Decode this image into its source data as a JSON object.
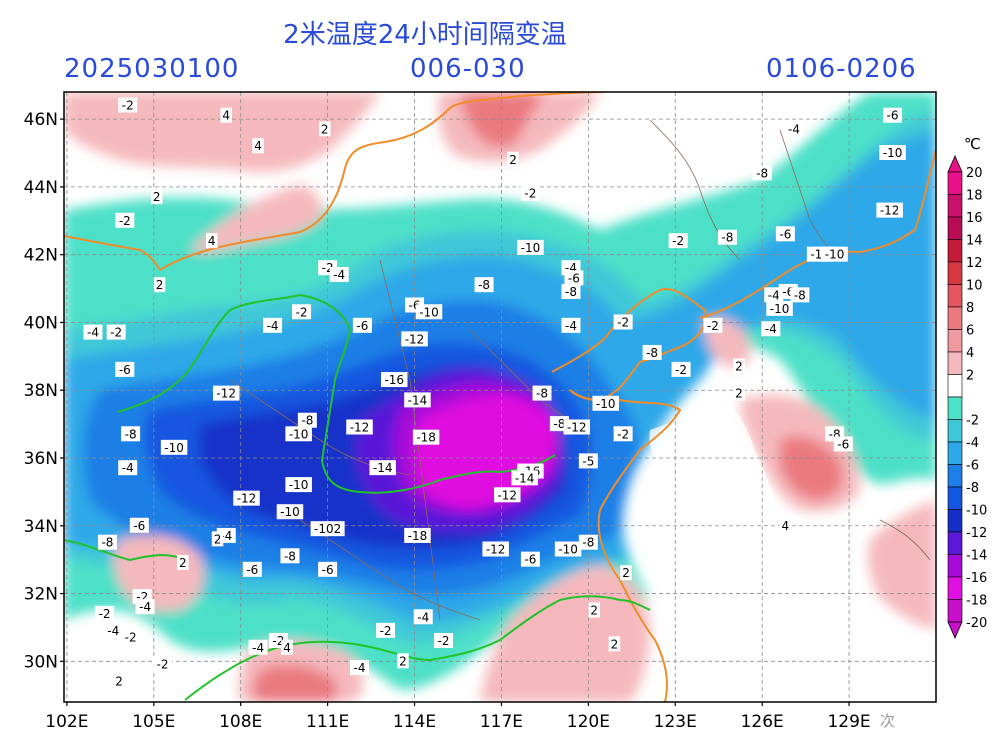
{
  "header": {
    "title": "2米温度24小时间隔变温",
    "run_time": "2025030100",
    "forecast_hours": "006-030",
    "valid_period": "0106-0206"
  },
  "axes": {
    "lat_labels": [
      "46N",
      "44N",
      "42N",
      "40N",
      "38N",
      "36N",
      "34N",
      "32N",
      "30N"
    ],
    "lon_labels": [
      "102E",
      "105E",
      "108E",
      "111E",
      "114E",
      "117E",
      "120E",
      "123E",
      "126E",
      "129E"
    ],
    "lat_values": [
      46,
      44,
      42,
      40,
      38,
      36,
      34,
      32,
      30
    ],
    "lon_values": [
      102,
      105,
      108,
      111,
      114,
      117,
      120,
      123,
      126,
      129
    ],
    "lon_range": [
      101.9,
      132
    ],
    "lat_range": [
      28.8,
      46.8
    ]
  },
  "colorbar": {
    "unit": "℃",
    "levels": [
      20,
      18,
      16,
      14,
      12,
      10,
      8,
      6,
      4,
      2,
      -2,
      -4,
      -6,
      -8,
      -10,
      -12,
      -14,
      -16,
      -18,
      -20
    ],
    "colors": [
      "#e8118a",
      "#c8116a",
      "#b80d55",
      "#c41a3a",
      "#d8383f",
      "#e35560",
      "#ea7a80",
      "#f09aa0",
      "#f5b9bd",
      "#ffffff",
      "#4ee0c8",
      "#3fc8d8",
      "#2ea8e8",
      "#1e7fe6",
      "#1356e0",
      "#1530c8",
      "#5a18d8",
      "#a60ad8",
      "#e010e0",
      "#c810c8"
    ]
  },
  "contour_labels": [
    {
      "text": "-2",
      "lon": 104.1,
      "lat": 46.4
    },
    {
      "text": "4",
      "lon": 107.5,
      "lat": 46.1
    },
    {
      "text": "4",
      "lon": 108.6,
      "lat": 45.2
    },
    {
      "text": "2",
      "lon": 110.9,
      "lat": 45.7
    },
    {
      "text": "2",
      "lon": 117.4,
      "lat": 44.8
    },
    {
      "text": "2",
      "lon": 105.1,
      "lat": 43.7
    },
    {
      "text": "-2",
      "lon": 104.0,
      "lat": 43.0
    },
    {
      "text": "4",
      "lon": 107.0,
      "lat": 42.4
    },
    {
      "text": "2",
      "lon": 105.2,
      "lat": 41.1
    },
    {
      "text": "-2",
      "lon": 118.0,
      "lat": 43.8
    },
    {
      "text": "-2",
      "lon": 111.0,
      "lat": 41.6
    },
    {
      "text": "-4",
      "lon": 111.4,
      "lat": 41.4
    },
    {
      "text": "-10",
      "lon": 118.0,
      "lat": 42.2
    },
    {
      "text": "-4",
      "lon": 119.4,
      "lat": 41.6
    },
    {
      "text": "-6",
      "lon": 119.5,
      "lat": 41.3
    },
    {
      "text": "-8",
      "lon": 119.4,
      "lat": 40.9
    },
    {
      "text": "-8",
      "lon": 116.4,
      "lat": 41.1
    },
    {
      "text": "-6",
      "lon": 114.0,
      "lat": 40.5
    },
    {
      "text": "-10",
      "lon": 114.5,
      "lat": 40.3
    },
    {
      "text": "-2",
      "lon": 110.1,
      "lat": 40.3
    },
    {
      "text": "-4",
      "lon": 109.1,
      "lat": 39.9
    },
    {
      "text": "-6",
      "lon": 112.2,
      "lat": 39.9
    },
    {
      "text": "-4",
      "lon": 119.4,
      "lat": 39.9
    },
    {
      "text": "-2",
      "lon": 121.2,
      "lat": 40.0
    },
    {
      "text": "-8",
      "lon": 122.2,
      "lat": 39.1
    },
    {
      "text": "-4",
      "lon": 102.9,
      "lat": 39.7
    },
    {
      "text": "-2",
      "lon": 103.7,
      "lat": 39.7
    },
    {
      "text": "-12",
      "lon": 114.0,
      "lat": 39.5
    },
    {
      "text": "-6",
      "lon": 104.0,
      "lat": 38.6
    },
    {
      "text": "-16",
      "lon": 113.3,
      "lat": 38.3
    },
    {
      "text": "-12",
      "lon": 107.5,
      "lat": 37.9
    },
    {
      "text": "-14",
      "lon": 114.1,
      "lat": 37.7
    },
    {
      "text": "-8",
      "lon": 118.4,
      "lat": 37.9
    },
    {
      "text": "-10",
      "lon": 120.6,
      "lat": 37.6
    },
    {
      "text": "-8",
      "lon": 119.0,
      "lat": 37.0
    },
    {
      "text": "-12",
      "lon": 119.6,
      "lat": 36.9
    },
    {
      "text": "-8",
      "lon": 110.3,
      "lat": 37.1
    },
    {
      "text": "-10",
      "lon": 110.0,
      "lat": 36.7
    },
    {
      "text": "-12",
      "lon": 112.1,
      "lat": 36.9
    },
    {
      "text": "-18",
      "lon": 114.4,
      "lat": 36.6
    },
    {
      "text": "-8",
      "lon": 104.2,
      "lat": 36.7
    },
    {
      "text": "-10",
      "lon": 105.7,
      "lat": 36.3
    },
    {
      "text": "-4",
      "lon": 104.1,
      "lat": 35.7
    },
    {
      "text": "-16",
      "lon": 118.0,
      "lat": 35.6
    },
    {
      "text": "-14",
      "lon": 117.8,
      "lat": 35.4
    },
    {
      "text": "-5",
      "lon": 120.0,
      "lat": 35.9
    },
    {
      "text": "-14",
      "lon": 112.9,
      "lat": 35.7
    },
    {
      "text": "-10",
      "lon": 110.0,
      "lat": 35.2
    },
    {
      "text": "-12",
      "lon": 117.2,
      "lat": 34.9
    },
    {
      "text": "-12",
      "lon": 108.2,
      "lat": 34.8
    },
    {
      "text": "-10",
      "lon": 109.7,
      "lat": 34.4
    },
    {
      "text": "-102",
      "lon": 111.0,
      "lat": 33.9
    },
    {
      "text": "-18",
      "lon": 114.1,
      "lat": 33.7
    },
    {
      "text": "-6",
      "lon": 104.5,
      "lat": 34.0
    },
    {
      "text": "-8",
      "lon": 103.4,
      "lat": 33.5
    },
    {
      "text": "-4",
      "lon": 107.5,
      "lat": 33.7
    },
    {
      "text": "2",
      "lon": 107.2,
      "lat": 33.6
    },
    {
      "text": "-12",
      "lon": 116.8,
      "lat": 33.3
    },
    {
      "text": "-10",
      "lon": 119.3,
      "lat": 33.3
    },
    {
      "text": "-6",
      "lon": 118.0,
      "lat": 33.0
    },
    {
      "text": "-8",
      "lon": 120.0,
      "lat": 33.5
    },
    {
      "text": "-8",
      "lon": 109.7,
      "lat": 33.1
    },
    {
      "text": "2",
      "lon": 106.0,
      "lat": 32.9
    },
    {
      "text": "-6",
      "lon": 108.4,
      "lat": 32.7
    },
    {
      "text": "-6",
      "lon": 111.0,
      "lat": 32.7
    },
    {
      "text": "2",
      "lon": 121.3,
      "lat": 32.6
    },
    {
      "text": "-2",
      "lon": 104.6,
      "lat": 31.9
    },
    {
      "text": "-4",
      "lon": 104.7,
      "lat": 31.6
    },
    {
      "text": "-2",
      "lon": 103.3,
      "lat": 31.4
    },
    {
      "text": "2",
      "lon": 120.2,
      "lat": 31.5
    },
    {
      "text": "-2",
      "lon": 104.2,
      "lat": 30.7
    },
    {
      "text": "-4",
      "lon": 103.6,
      "lat": 30.9
    },
    {
      "text": "-4",
      "lon": 114.3,
      "lat": 31.3
    },
    {
      "text": "-2",
      "lon": 113.0,
      "lat": 30.9
    },
    {
      "text": "-2",
      "lon": 115.0,
      "lat": 30.6
    },
    {
      "text": "2",
      "lon": 120.9,
      "lat": 30.5
    },
    {
      "text": "-4",
      "lon": 108.6,
      "lat": 30.4
    },
    {
      "text": "-2",
      "lon": 109.3,
      "lat": 30.6
    },
    {
      "text": "4",
      "lon": 109.6,
      "lat": 30.4
    },
    {
      "text": "-2",
      "lon": 105.3,
      "lat": 29.9
    },
    {
      "text": "-4",
      "lon": 112.1,
      "lat": 29.8
    },
    {
      "text": "2",
      "lon": 113.6,
      "lat": 30.0
    },
    {
      "text": "2",
      "lon": 103.8,
      "lat": 29.4
    },
    {
      "text": "-2",
      "lon": 123.1,
      "lat": 42.4
    },
    {
      "text": "-8",
      "lon": 124.8,
      "lat": 42.5
    },
    {
      "text": "-6",
      "lon": 126.8,
      "lat": 42.6
    },
    {
      "text": "-10",
      "lon": 128.0,
      "lat": 42.0
    },
    {
      "text": "-8",
      "lon": 126.0,
      "lat": 44.4
    },
    {
      "text": "-4",
      "lon": 127.1,
      "lat": 45.7
    },
    {
      "text": "-6",
      "lon": 130.5,
      "lat": 46.1
    },
    {
      "text": "-10",
      "lon": 130.5,
      "lat": 45.0
    },
    {
      "text": "-12",
      "lon": 130.4,
      "lat": 43.3
    },
    {
      "text": "-10",
      "lon": 128.5,
      "lat": 42.0
    },
    {
      "text": "-4",
      "lon": 126.4,
      "lat": 40.8
    },
    {
      "text": "-6",
      "lon": 126.9,
      "lat": 40.9
    },
    {
      "text": "-8",
      "lon": 127.3,
      "lat": 40.8
    },
    {
      "text": "-10",
      "lon": 126.6,
      "lat": 40.4
    },
    {
      "text": "-4",
      "lon": 126.3,
      "lat": 39.8
    },
    {
      "text": "-2",
      "lon": 124.3,
      "lat": 39.9
    },
    {
      "text": "2",
      "lon": 125.2,
      "lat": 38.7
    },
    {
      "text": "2",
      "lon": 125.2,
      "lat": 37.9
    },
    {
      "text": "-8",
      "lon": 128.5,
      "lat": 36.7
    },
    {
      "text": "-6",
      "lon": 128.8,
      "lat": 36.4
    },
    {
      "text": "4",
      "lon": 126.8,
      "lat": 34.0
    },
    {
      "text": "-2",
      "lon": 123.2,
      "lat": 38.6
    },
    {
      "text": "-2",
      "lon": 121.2,
      "lat": 36.7
    }
  ],
  "watermark": "  次"
}
